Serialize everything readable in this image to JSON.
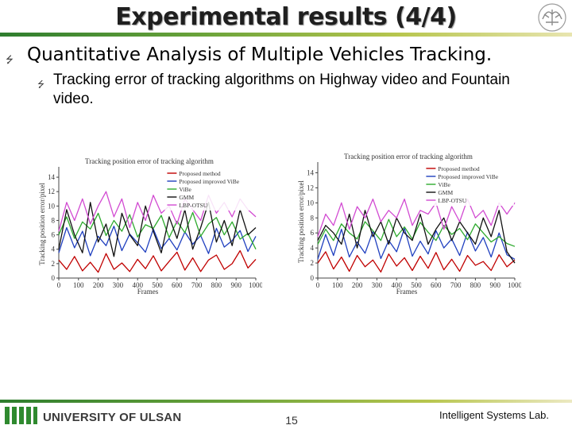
{
  "slide": {
    "title": "Experimental results (4/4)",
    "bullet1": "Quantitative Analysis of Multiple Vehicles Tracking.",
    "bullet2": "Tracking error of tracking algorithms on Highway video and Fountain video.",
    "footer_university": "UNIVERSITY OF ULSAN",
    "page_number": "15",
    "footer_lab": "Intelligent Systems Lab."
  },
  "chart_data": [
    {
      "type": "line",
      "title": "Tracking position error of tracking algorithm",
      "xlabel": "Frames",
      "ylabel": "Tracking position error/pixel",
      "xlim": [
        0,
        1000
      ],
      "ylim": [
        0,
        15
      ],
      "xticks": [
        "0",
        "100",
        "200",
        "300",
        "400",
        "500",
        "600",
        "700",
        "800",
        "900",
        "1000"
      ],
      "yticks": [
        "0",
        "2",
        "4",
        "6",
        "8",
        "10",
        "12",
        "14"
      ],
      "legend_position": "top-right",
      "x": [
        0,
        40,
        80,
        120,
        160,
        200,
        240,
        280,
        320,
        360,
        400,
        440,
        480,
        520,
        560,
        600,
        640,
        680,
        720,
        760,
        800,
        840,
        880,
        920,
        960,
        1000
      ],
      "series": [
        {
          "name": "Proposed method",
          "color": "#c00000",
          "values": [
            2.5,
            1.2,
            3.0,
            1.0,
            2.2,
            0.8,
            3.4,
            1.2,
            2.1,
            0.9,
            2.6,
            1.3,
            3.1,
            1.0,
            2.3,
            3.6,
            1.1,
            2.8,
            0.9,
            2.5,
            3.2,
            1.2,
            2.0,
            3.8,
            1.4,
            2.6
          ]
        },
        {
          "name": "Proposed improved ViBe",
          "color": "#1f3fbf",
          "values": [
            3.5,
            7.0,
            4.2,
            6.5,
            3.1,
            5.8,
            4.5,
            7.2,
            3.8,
            6.1,
            4.9,
            3.6,
            6.8,
            4.1,
            5.5,
            3.9,
            6.4,
            4.7,
            5.9,
            3.4,
            6.9,
            4.3,
            5.2,
            6.6,
            3.7,
            5.8
          ]
        },
        {
          "name": "ViBe",
          "color": "#2eaa2e",
          "values": [
            6.0,
            8.5,
            5.5,
            7.8,
            6.8,
            9.0,
            5.9,
            8.0,
            6.5,
            8.8,
            5.7,
            7.4,
            6.9,
            8.7,
            5.6,
            7.9,
            6.3,
            9.1,
            5.8,
            7.5,
            8.4,
            6.0,
            7.8,
            5.4,
            6.2,
            4.0
          ]
        },
        {
          "name": "GMM",
          "color": "#111111",
          "values": [
            4.0,
            9.5,
            6.0,
            3.5,
            10.5,
            5.0,
            7.5,
            3.0,
            9.0,
            6.0,
            4.5,
            10.0,
            6.5,
            3.5,
            8.5,
            5.5,
            9.5,
            4.0,
            7.0,
            10.5,
            5.0,
            8.0,
            4.5,
            9.5,
            6.0,
            7.0
          ]
        },
        {
          "name": "LBP-OTSU",
          "color": "#d24bd2",
          "values": [
            6.5,
            10.5,
            8.0,
            11.0,
            7.5,
            10.0,
            12.0,
            8.5,
            11.0,
            7.0,
            10.5,
            8.0,
            11.5,
            9.0,
            10.0,
            7.5,
            11.0,
            9.5,
            8.0,
            11.5,
            9.0,
            10.5,
            8.5,
            11.0,
            9.5,
            8.5
          ]
        }
      ]
    },
    {
      "type": "line",
      "title": "Tracking position error of tracking algorithm",
      "xlabel": "Frames",
      "ylabel": "Tracking position error/pixel",
      "xlim": [
        0,
        1000
      ],
      "ylim": [
        0,
        15
      ],
      "xticks": [
        "0",
        "100",
        "200",
        "300",
        "400",
        "500",
        "600",
        "700",
        "800",
        "900",
        "1000"
      ],
      "yticks": [
        "0",
        "2",
        "4",
        "6",
        "8",
        "10",
        "12",
        "14"
      ],
      "legend_position": "top-right",
      "x": [
        0,
        40,
        80,
        120,
        160,
        200,
        240,
        280,
        320,
        360,
        400,
        440,
        480,
        520,
        560,
        600,
        640,
        680,
        720,
        760,
        800,
        840,
        880,
        920,
        960,
        1000
      ],
      "series": [
        {
          "name": "Proposed method",
          "color": "#c00000",
          "values": [
            2.0,
            3.5,
            1.2,
            2.8,
            0.9,
            3.0,
            1.5,
            2.4,
            0.8,
            3.2,
            1.6,
            2.7,
            1.0,
            2.9,
            1.3,
            3.4,
            1.1,
            2.5,
            0.9,
            3.0,
            1.7,
            2.2,
            1.0,
            3.1,
            1.5,
            2.4
          ]
        },
        {
          "name": "Proposed improved ViBe",
          "color": "#1f3fbf",
          "values": [
            2.5,
            5.8,
            3.0,
            6.5,
            2.8,
            4.8,
            3.3,
            6.2,
            2.6,
            5.0,
            3.5,
            6.6,
            2.9,
            4.9,
            3.2,
            6.3,
            4.0,
            5.2,
            3.0,
            6.1,
            3.6,
            5.4,
            2.8,
            6.0,
            3.1,
            2.5
          ]
        },
        {
          "name": "ViBe",
          "color": "#2eaa2e",
          "values": [
            4.5,
            6.5,
            5.0,
            7.2,
            6.0,
            5.2,
            7.5,
            6.3,
            5.0,
            7.8,
            5.5,
            6.8,
            5.2,
            7.4,
            6.1,
            5.0,
            7.0,
            5.8,
            6.6,
            5.1,
            7.2,
            6.0,
            4.8,
            5.5,
            4.6,
            4.2
          ]
        },
        {
          "name": "GMM",
          "color": "#111111",
          "values": [
            5.0,
            7.0,
            6.0,
            4.5,
            8.5,
            4.0,
            9.0,
            5.5,
            7.5,
            4.5,
            8.0,
            6.0,
            5.0,
            8.5,
            4.5,
            6.5,
            8.0,
            5.0,
            7.5,
            6.0,
            4.5,
            8.0,
            5.5,
            9.0,
            3.5,
            2.0
          ]
        },
        {
          "name": "LBP-OTSU",
          "color": "#d24bd2",
          "values": [
            5.5,
            8.5,
            7.0,
            10.0,
            6.5,
            9.5,
            8.0,
            10.5,
            7.5,
            9.0,
            8.0,
            10.5,
            7.0,
            9.0,
            8.5,
            10.0,
            6.5,
            9.5,
            7.5,
            10.5,
            8.0,
            9.0,
            7.0,
            10.0,
            8.5,
            10.0
          ]
        }
      ]
    }
  ]
}
